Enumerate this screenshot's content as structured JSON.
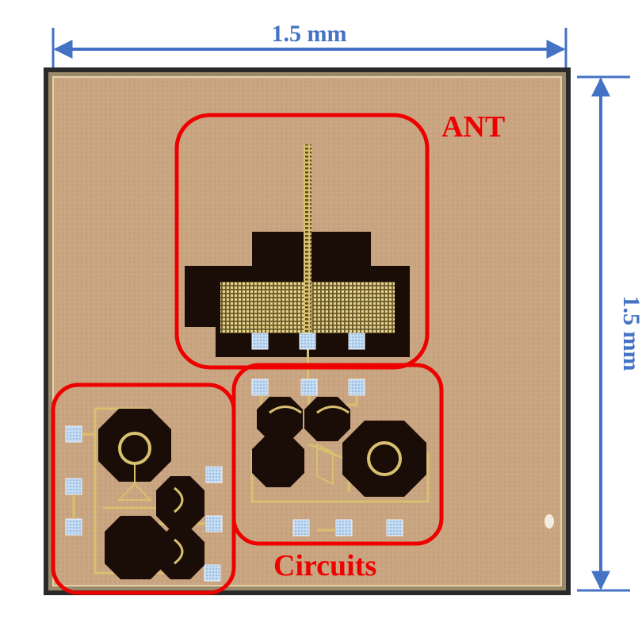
{
  "dimensions": {
    "width_label": "1.5 mm",
    "height_label": "1.5 mm",
    "color": "#4472c4"
  },
  "regions": {
    "antenna_label": "ANT",
    "circuits_label": "Circuits",
    "color": "#ee0000"
  },
  "colors": {
    "substrate": "#c9a581",
    "metal_dark": "#1a0d08",
    "gold": "#d8c070",
    "pad": "#a8c8e8"
  }
}
